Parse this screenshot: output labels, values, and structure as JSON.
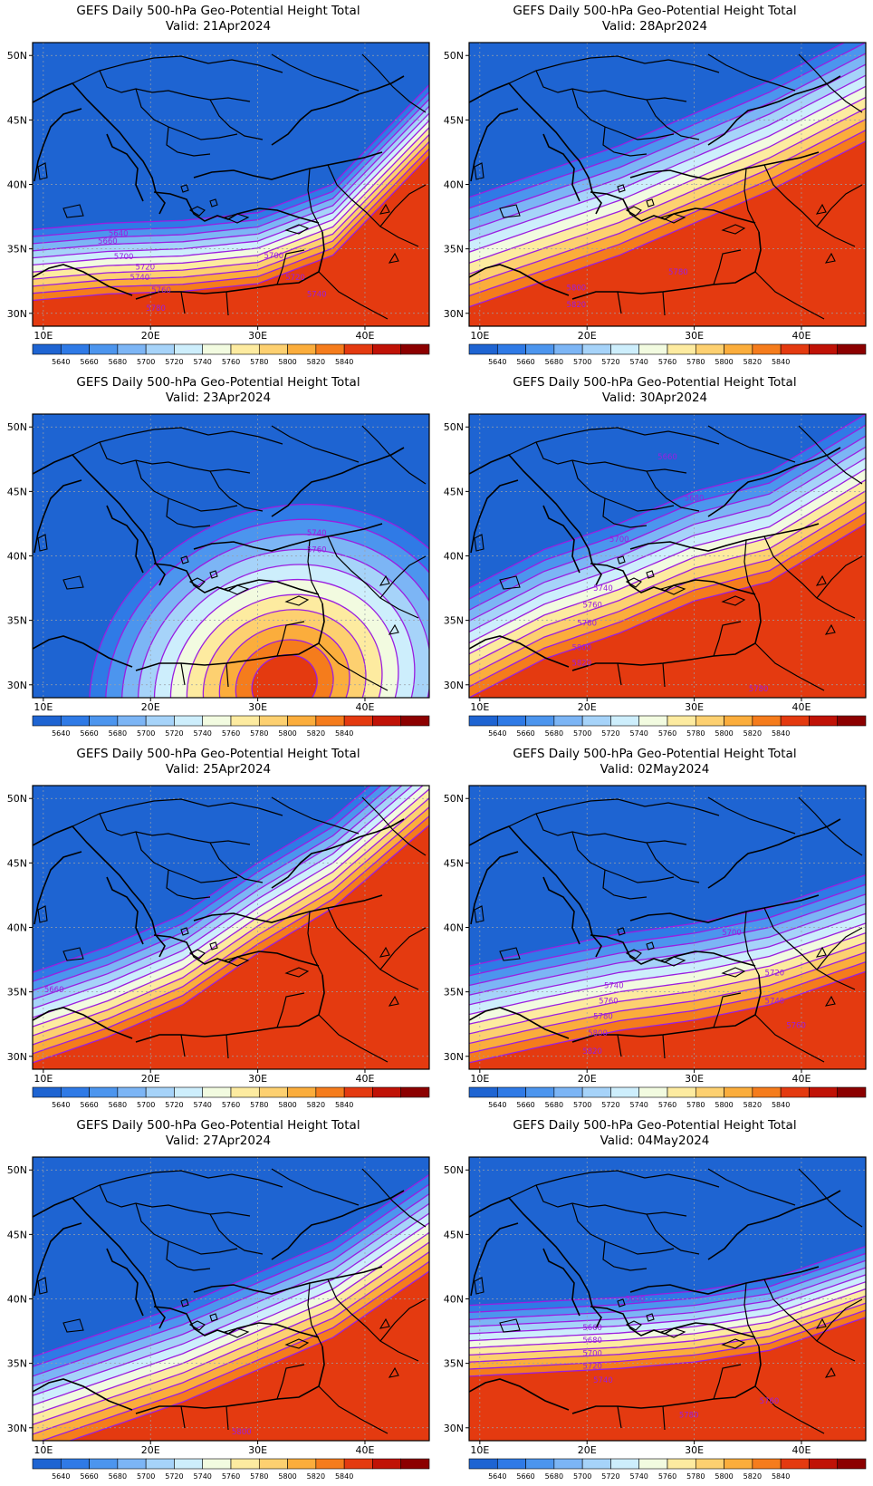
{
  "figure": {
    "title_line": "GEFS Daily 500-hPa Geo-Potential Height Total",
    "valid_prefix": "Valid:"
  },
  "axes": {
    "lon_ticks": [
      "10E",
      "20E",
      "30E",
      "40E"
    ],
    "lat_ticks": [
      "50N",
      "45N",
      "40N",
      "35N",
      "30N"
    ],
    "lon_range": [
      9,
      46
    ],
    "lat_range": [
      29,
      51
    ]
  },
  "colorbar": {
    "colors": [
      "#1e64d2",
      "#2f7ae6",
      "#4c95ee",
      "#7cb5f5",
      "#a6d3f9",
      "#cdeefc",
      "#f2fbe0",
      "#fdeba0",
      "#fdd070",
      "#fbad3c",
      "#f57c1c",
      "#e43a10",
      "#c01206",
      "#8c0000"
    ],
    "labels": [
      "5640",
      "5660",
      "5680",
      "5700",
      "5720",
      "5740",
      "5760",
      "5780",
      "5800",
      "5820",
      "5840"
    ],
    "levels": [
      5640,
      5660,
      5680,
      5700,
      5720,
      5740,
      5760,
      5780,
      5800,
      5820,
      5840
    ]
  },
  "contour_color": "#9a1ee0",
  "panels": [
    {
      "valid": "21Apr2024",
      "col": 0,
      "row": 0,
      "field": {
        "type": "band",
        "a": [
          36.5,
          37,
          37.2,
          37.8,
          40,
          46
        ],
        "spacing": 0.55,
        "max_level": 5840
      },
      "labels": [
        {
          "text": "5640",
          "lon": 17,
          "lat": 36.2
        },
        {
          "text": "5660",
          "lon": 16,
          "lat": 35.6
        },
        {
          "text": "5700",
          "lon": 17.5,
          "lat": 34.4
        },
        {
          "text": "5700",
          "lon": 31.5,
          "lat": 34.5
        },
        {
          "text": "5720",
          "lon": 19.5,
          "lat": 33.6
        },
        {
          "text": "5720",
          "lon": 33.5,
          "lat": 32.8
        },
        {
          "text": "5740",
          "lon": 19.0,
          "lat": 32.8
        },
        {
          "text": "5740",
          "lon": 35.5,
          "lat": 31.5
        },
        {
          "text": "5760",
          "lon": 21,
          "lat": 31.8
        },
        {
          "text": "5780",
          "lon": 20.5,
          "lat": 30.4
        }
      ]
    },
    {
      "valid": "28Apr2024",
      "col": 1,
      "row": 0,
      "field": {
        "type": "band",
        "a": [
          39,
          41,
          43,
          45.5,
          48,
          51
        ],
        "spacing": 0.85,
        "max_level": 5840
      },
      "labels": [
        {
          "text": "5780",
          "lon": 28.5,
          "lat": 33.2
        },
        {
          "text": "5800",
          "lon": 19,
          "lat": 32
        },
        {
          "text": "5820",
          "lon": 19,
          "lat": 30.7
        }
      ]
    },
    {
      "valid": "23Apr2024",
      "col": 0,
      "row": 1,
      "field": {
        "type": "ridge",
        "cx": 32.5,
        "cy": 30.0,
        "sx": 9,
        "sy": 6.5,
        "peak": 5880,
        "drop": 300
      },
      "labels": [
        {
          "text": "5740",
          "lon": 35.5,
          "lat": 41.8
        },
        {
          "text": "5760",
          "lon": 35.5,
          "lat": 40.5
        }
      ]
    },
    {
      "valid": "30Apr2024",
      "col": 1,
      "row": 1,
      "field": {
        "type": "band",
        "a": [
          37.5,
          40.5,
          42.5,
          45,
          46.5,
          50
        ],
        "spacing": 0.85,
        "max_level": 5840
      },
      "labels": [
        {
          "text": "5660",
          "lon": 27.5,
          "lat": 47.7
        },
        {
          "text": "5680",
          "lon": 30,
          "lat": 44.5
        },
        {
          "text": "5700",
          "lon": 23,
          "lat": 41.3
        },
        {
          "text": "5740",
          "lon": 21.5,
          "lat": 37.5
        },
        {
          "text": "5760",
          "lon": 20.5,
          "lat": 36.2
        },
        {
          "text": "5780",
          "lon": 20,
          "lat": 34.8
        },
        {
          "text": "5800",
          "lon": 19.5,
          "lat": 32.9
        },
        {
          "text": "5820",
          "lon": 19.5,
          "lat": 31.7
        },
        {
          "text": "5780",
          "lon": 36,
          "lat": 29.7
        }
      ]
    },
    {
      "valid": "25Apr2024",
      "col": 0,
      "row": 2,
      "field": {
        "type": "band",
        "a": [
          36.5,
          38.5,
          41,
          45,
          48.5,
          53.5
        ],
        "spacing": 0.7,
        "max_level": 5840
      },
      "labels": [
        {
          "text": "5660",
          "lon": 11,
          "lat": 35.2
        }
      ]
    },
    {
      "valid": "02May2024",
      "col": 1,
      "row": 2,
      "field": {
        "type": "band",
        "a": [
          37,
          38.3,
          39.5,
          40.3,
          41.5,
          43.5
        ],
        "spacing": 0.75,
        "max_level": 5840
      },
      "labels": [
        {
          "text": "5700",
          "lon": 33.5,
          "lat": 39.6
        },
        {
          "text": "5720",
          "lon": 37.5,
          "lat": 36.5
        },
        {
          "text": "5740",
          "lon": 22.5,
          "lat": 35.5
        },
        {
          "text": "5740",
          "lon": 37.5,
          "lat": 34.3
        },
        {
          "text": "5760",
          "lon": 22,
          "lat": 34.3
        },
        {
          "text": "5760",
          "lon": 39.5,
          "lat": 32.4
        },
        {
          "text": "5780",
          "lon": 21.5,
          "lat": 33.1
        },
        {
          "text": "5800",
          "lon": 21,
          "lat": 31.8
        },
        {
          "text": "5820",
          "lon": 20.5,
          "lat": 30.4
        }
      ]
    },
    {
      "valid": "27Apr2024",
      "col": 0,
      "row": 3,
      "field": {
        "type": "band",
        "a": [
          35.5,
          37.5,
          39.5,
          42,
          44.5,
          48.5
        ],
        "spacing": 0.75,
        "max_level": 5840
      },
      "labels": [
        {
          "text": "5800",
          "lon": 28.5,
          "lat": 29.7
        }
      ]
    },
    {
      "valid": "04May2024",
      "col": 1,
      "row": 3,
      "field": {
        "type": "band",
        "a": [
          39.5,
          39.8,
          40.1,
          40.6,
          41.5,
          43.5
        ],
        "spacing": 0.55,
        "max_level": 5840
      },
      "labels": [
        {
          "text": "5640",
          "lon": 24.5,
          "lat": 40.0
        },
        {
          "text": "5660",
          "lon": 20.5,
          "lat": 37.8
        },
        {
          "text": "5680",
          "lon": 20.5,
          "lat": 36.8
        },
        {
          "text": "5700",
          "lon": 20.5,
          "lat": 35.8
        },
        {
          "text": "5720",
          "lon": 20.5,
          "lat": 34.8
        },
        {
          "text": "5740",
          "lon": 21.5,
          "lat": 33.7
        },
        {
          "text": "5760",
          "lon": 37,
          "lat": 32.1
        },
        {
          "text": "5780",
          "lon": 29.5,
          "lat": 31
        }
      ]
    }
  ]
}
